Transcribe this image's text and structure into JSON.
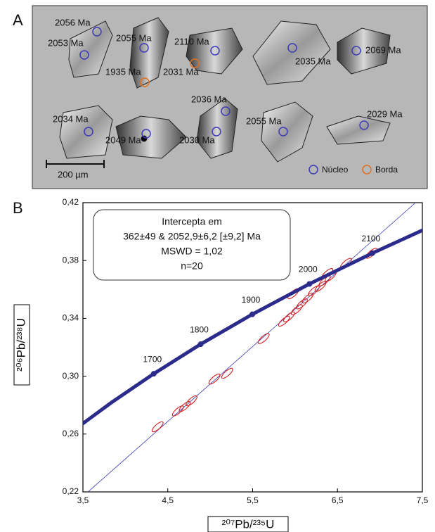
{
  "panel_a": {
    "label": "A",
    "spots": [
      "2056 Ma",
      "2053 Ma",
      "2055 Ma",
      "1935 Ma",
      "2110 Ma",
      "2031 Ma",
      "2035 Ma",
      "2069 Ma",
      "2036 Ma",
      "2034 Ma",
      "2049 Ma",
      "2030 Ma",
      "2055 Ma",
      "2029 Ma"
    ],
    "scale_bar": "200 µm",
    "legend": [
      "Núcleo",
      "Borda"
    ]
  },
  "chart_data": {
    "type": "scatter",
    "panel_label": "B",
    "x_label": "²⁰⁷Pb/²³⁵U",
    "y_label": "²⁰⁶Pb/²³⁸U",
    "annotation": [
      "Intercepta em",
      "362±49 & 2052,9±6,2 [±9,2] Ma",
      "MSWD = 1,02",
      "n=20"
    ],
    "xlim": [
      3.5,
      7.5
    ],
    "ylim": [
      0.22,
      0.42
    ],
    "xticks": [
      {
        "value": 3.5,
        "label": "3,5"
      },
      {
        "value": 4.5,
        "label": "4,5"
      },
      {
        "value": 5.5,
        "label": "5,5"
      },
      {
        "value": 6.5,
        "label": "6,5"
      },
      {
        "value": 7.5,
        "label": "7,5"
      }
    ],
    "yticks": [
      {
        "value": 0.22,
        "label": "0,22"
      },
      {
        "value": 0.26,
        "label": "0,26"
      },
      {
        "value": 0.3,
        "label": "0,30"
      },
      {
        "value": 0.34,
        "label": "0,34"
      },
      {
        "value": 0.38,
        "label": "0,38"
      },
      {
        "value": 0.42,
        "label": "0,42"
      }
    ],
    "concordia": {
      "color": "#2b2b8c",
      "x": [
        3.5,
        3.834,
        4.335,
        4.887,
        5.496,
        6.169,
        6.911,
        7.5
      ],
      "y": [
        0.2673,
        0.2817,
        0.3017,
        0.3221,
        0.3428,
        0.3638,
        0.3851,
        0.4009
      ]
    },
    "concordia_ticks": {
      "ages": [
        1700,
        1800,
        1900,
        2000,
        2100
      ],
      "x": [
        4.335,
        4.887,
        5.496,
        6.169,
        6.911
      ],
      "y": [
        0.3017,
        0.3221,
        0.3428,
        0.3638,
        0.3851
      ]
    },
    "discordia": {
      "color": "#3a3ab8",
      "x": [
        3.56,
        7.42
      ],
      "y": [
        0.22,
        0.42
      ]
    },
    "series": [
      {
        "color": "#d42020",
        "x": [
          4.38,
          4.62,
          4.7,
          4.78,
          5.05,
          5.2,
          5.63,
          5.87,
          5.93,
          6.02,
          6.08,
          6.15,
          5.98,
          6.22,
          6.3,
          6.35,
          6.42,
          6.38,
          6.6,
          6.9
        ],
        "values": [
          0.265,
          0.276,
          0.279,
          0.283,
          0.298,
          0.302,
          0.326,
          0.338,
          0.341,
          0.346,
          0.35,
          0.354,
          0.357,
          0.359,
          0.362,
          0.366,
          0.369,
          0.371,
          0.378,
          0.385
        ]
      }
    ]
  }
}
